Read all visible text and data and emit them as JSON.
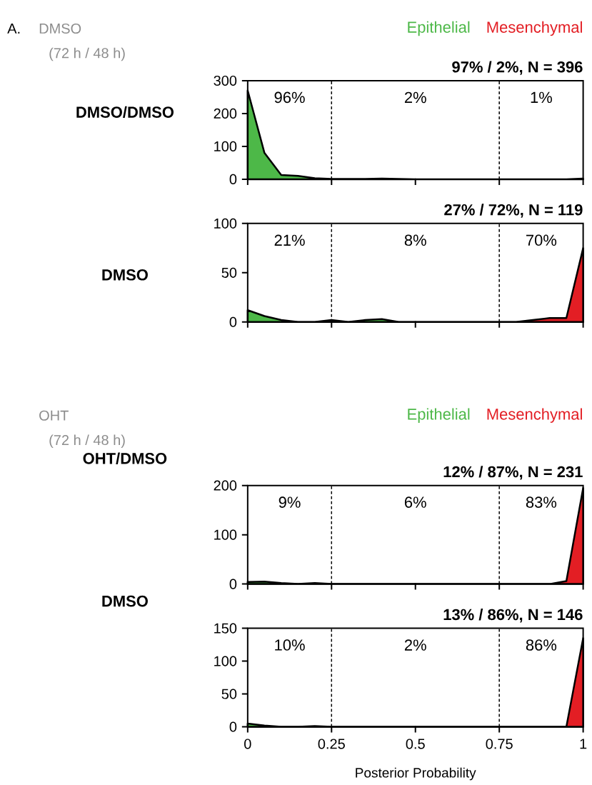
{
  "chart_data": [
    {
      "type": "area",
      "ylabel": "DMSO/DMSO",
      "title": "97% / 2%, N = 396",
      "series": [
        {
          "name": "Epithelial",
          "color": "#4db848",
          "x": [
            0,
            0.05,
            0.1,
            0.15,
            0.2,
            0.25,
            0.3,
            0.35,
            0.4,
            0.45,
            0.5
          ],
          "values": [
            270,
            80,
            13,
            10,
            3,
            1,
            1,
            1,
            2,
            1,
            0
          ]
        },
        {
          "name": "Mesenchymal",
          "color": "#e31e24",
          "x": [
            0.5,
            0.55,
            0.6,
            0.65,
            0.7,
            0.75,
            0.8,
            0.85,
            0.9,
            0.95,
            1
          ],
          "values": [
            0,
            0,
            0,
            0,
            0,
            0,
            0,
            0,
            0,
            0,
            2
          ]
        }
      ],
      "xlim": [
        0,
        1
      ],
      "xticks": [
        0,
        0.25,
        0.5,
        0.75,
        1
      ],
      "ylim": [
        0,
        300
      ],
      "yticks": [
        0,
        100,
        200,
        300
      ],
      "tick_labels": "y",
      "ref_lines": [
        {
          "axis": "x",
          "value": 0.25,
          "line_style": "dashed"
        },
        {
          "axis": "x",
          "value": 0.75,
          "line_style": "dashed"
        }
      ],
      "annotations": [
        "96%",
        "2%",
        "1%",
        "A.",
        "DMSO",
        "(72 h / 48 h)"
      ]
    },
    {
      "type": "area",
      "ylabel": "DMSO",
      "title": "27% / 72%, N = 119",
      "series": [
        {
          "color": "#4db848",
          "x": [
            0,
            0.05,
            0.1,
            0.15,
            0.2,
            0.25,
            0.3,
            0.35,
            0.4,
            0.45,
            0.5
          ],
          "values": [
            12,
            6,
            2,
            0,
            0,
            2,
            0,
            2,
            3,
            0,
            0
          ]
        },
        {
          "color": "#e31e24",
          "x": [
            0.5,
            0.55,
            0.6,
            0.65,
            0.7,
            0.75,
            0.8,
            0.85,
            0.9,
            0.95,
            1
          ],
          "values": [
            0,
            0,
            0,
            0,
            0,
            0,
            0,
            2,
            4,
            4,
            75
          ]
        }
      ],
      "xlim": [
        0,
        1
      ],
      "xticks": [
        0,
        0.25,
        0.5,
        0.75,
        1
      ],
      "ylim": [
        0,
        100
      ],
      "yticks": [
        0,
        50,
        100
      ],
      "tick_labels": "y",
      "ref_lines": [
        {
          "axis": "x",
          "value": 0.25,
          "line_style": "dashed"
        },
        {
          "axis": "x",
          "value": 0.75,
          "line_style": "dashed"
        }
      ],
      "annotations": [
        "21%",
        "8%",
        "70%"
      ]
    },
    {
      "type": "area",
      "ylabel": "OHT/DMSO",
      "title": "12% / 87%, N = 231",
      "series": [
        {
          "name": "Epithelial",
          "color": "#4db848",
          "x": [
            0,
            0.05,
            0.1,
            0.15,
            0.2,
            0.25,
            0.3,
            0.35,
            0.4,
            0.45,
            0.5
          ],
          "values": [
            4,
            5,
            2,
            0,
            2,
            0,
            0,
            0,
            0,
            0,
            0
          ]
        },
        {
          "name": "Mesenchymal",
          "color": "#e31e24",
          "x": [
            0.5,
            0.55,
            0.6,
            0.65,
            0.7,
            0.75,
            0.8,
            0.85,
            0.9,
            0.95,
            1
          ],
          "values": [
            0,
            0,
            0,
            0,
            0,
            0,
            0,
            0,
            0,
            6,
            195
          ]
        }
      ],
      "xlim": [
        0,
        1
      ],
      "xticks": [
        0,
        0.25,
        0.5,
        0.75,
        1
      ],
      "ylim": [
        0,
        200
      ],
      "yticks": [
        0,
        100,
        200
      ],
      "tick_labels": "y",
      "ref_lines": [
        {
          "axis": "x",
          "value": 0.25,
          "line_style": "dashed"
        },
        {
          "axis": "x",
          "value": 0.75,
          "line_style": "dashed"
        }
      ],
      "annotations": [
        "9%",
        "6%",
        "83%",
        "OHT",
        "(72 h / 48 h)"
      ]
    },
    {
      "type": "area",
      "ylabel": "DMSO",
      "title": "13% / 86%, N = 146",
      "xlabel": "Posterior Probability",
      "series": [
        {
          "color": "#4db848",
          "x": [
            0,
            0.05,
            0.1,
            0.15,
            0.2,
            0.25,
            0.3,
            0.35,
            0.4,
            0.45,
            0.5
          ],
          "values": [
            5,
            2,
            0,
            0,
            1,
            0,
            0,
            0,
            0,
            0,
            0
          ]
        },
        {
          "color": "#e31e24",
          "x": [
            0.5,
            0.55,
            0.6,
            0.65,
            0.7,
            0.75,
            0.8,
            0.85,
            0.9,
            0.95,
            1
          ],
          "values": [
            0,
            0,
            0,
            0,
            0,
            0,
            0,
            0,
            0,
            0,
            135
          ]
        }
      ],
      "xlim": [
        0,
        1
      ],
      "xticks": [
        0,
        0.25,
        0.5,
        0.75,
        1
      ],
      "ylim": [
        0,
        150
      ],
      "yticks": [
        0,
        50,
        100,
        150
      ],
      "ref_lines": [
        {
          "axis": "x",
          "value": 0.25,
          "line_style": "dashed"
        },
        {
          "axis": "x",
          "value": 0.75,
          "line_style": "dashed"
        }
      ],
      "annotations": [
        "10%",
        "2%",
        "86%"
      ]
    }
  ]
}
